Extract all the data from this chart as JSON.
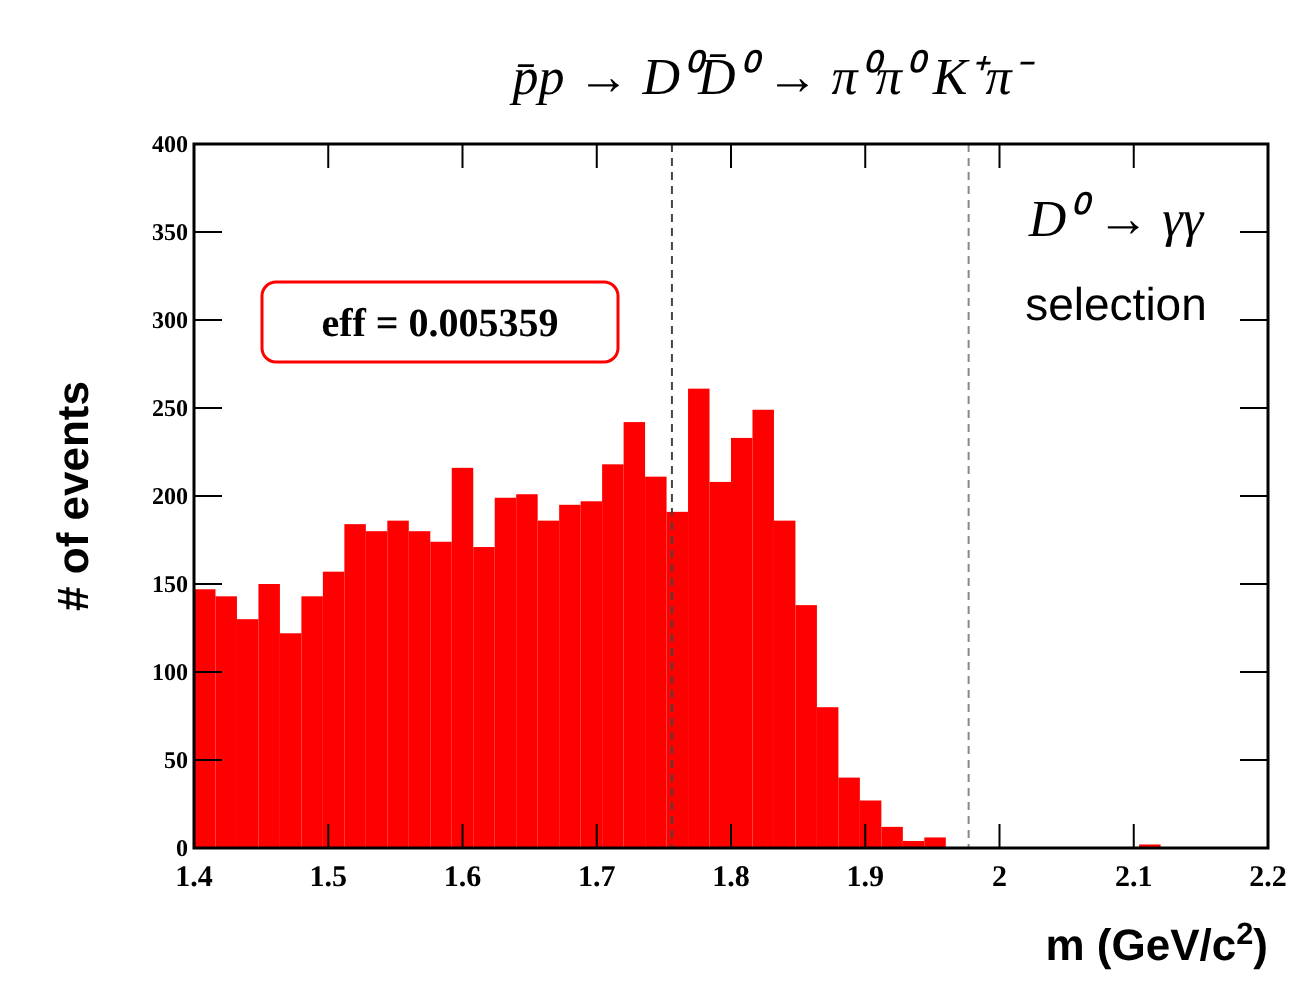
{
  "chart_data": {
    "type": "histogram",
    "title": "p̄p → D⁰D̄⁰ → π⁰π⁰ K⁺π⁻",
    "xlabel": "m (GeV/c$^{2}$)",
    "ylabel": "# of events",
    "bins": [
      1.4,
      1.416,
      1.432,
      1.448,
      1.464,
      1.48,
      1.496,
      1.512,
      1.528,
      1.544,
      1.56,
      1.576,
      1.592,
      1.608,
      1.624,
      1.64,
      1.656,
      1.672,
      1.688,
      1.704,
      1.72,
      1.736,
      1.752,
      1.768,
      1.784,
      1.8,
      1.816,
      1.832,
      1.848,
      1.864,
      1.88,
      1.896,
      1.912,
      1.928,
      1.944,
      1.96,
      1.976,
      1.992,
      2.008,
      2.024,
      2.04,
      2.056,
      2.072,
      2.088,
      2.104,
      2.12,
      2.136,
      2.152,
      2.168,
      2.184,
      2.2
    ],
    "values": [
      147,
      143,
      130,
      150,
      122,
      143,
      157,
      184,
      180,
      186,
      180,
      174,
      216,
      171,
      199,
      201,
      186,
      195,
      197,
      218,
      242,
      211,
      191,
      261,
      208,
      233,
      249,
      186,
      138,
      80,
      40,
      27,
      12,
      4,
      6,
      0,
      0,
      0,
      0,
      0,
      0,
      0,
      0,
      0,
      2,
      0,
      0,
      0,
      0,
      0
    ],
    "color": "#ff0000",
    "xlim": [
      1.4,
      2.2
    ],
    "xticks": [
      1.4,
      1.5,
      1.6,
      1.7,
      1.8,
      1.9,
      2,
      2.1,
      2.2
    ],
    "ylim": [
      0,
      400
    ],
    "yticks": [
      0,
      50,
      100,
      150,
      200,
      250,
      300,
      350,
      400
    ],
    "ref_lines": [
      {
        "axis": "x",
        "value": 1.756,
        "color": "#444444",
        "line_style": "dashed"
      },
      {
        "axis": "x",
        "value": 1.977,
        "color": "#888888",
        "line_style": "dashed"
      }
    ],
    "annotations": [
      "eff = 0.005359",
      "D⁰ → γγ",
      "selection"
    ]
  }
}
